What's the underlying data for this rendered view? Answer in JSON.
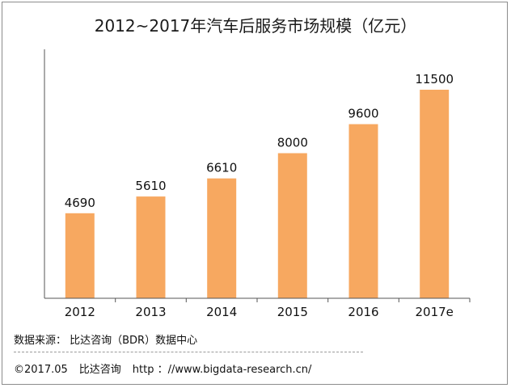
{
  "chart_data": {
    "type": "bar",
    "title": "2012~2017年汽车后服务市场规模（亿元）",
    "categories": [
      "2012",
      "2013",
      "2014",
      "2015",
      "2016",
      "2017e"
    ],
    "values": [
      4690,
      5610,
      6610,
      8000,
      9600,
      11500
    ],
    "data_labels": [
      "4690",
      "5610",
      "6610",
      "8000",
      "9600",
      "11500"
    ],
    "xlabel": "",
    "ylabel": "",
    "grid": false,
    "bar_color": "#f7a860",
    "axis_color": "#555555",
    "border_color": "#8c8c8c"
  },
  "footer": {
    "source": "数据来源： 比达咨询（BDR）数据中心",
    "copyright": "©2017.05",
    "company": "比达咨询",
    "url": "http ：//www.bigdata-research.cn/"
  }
}
